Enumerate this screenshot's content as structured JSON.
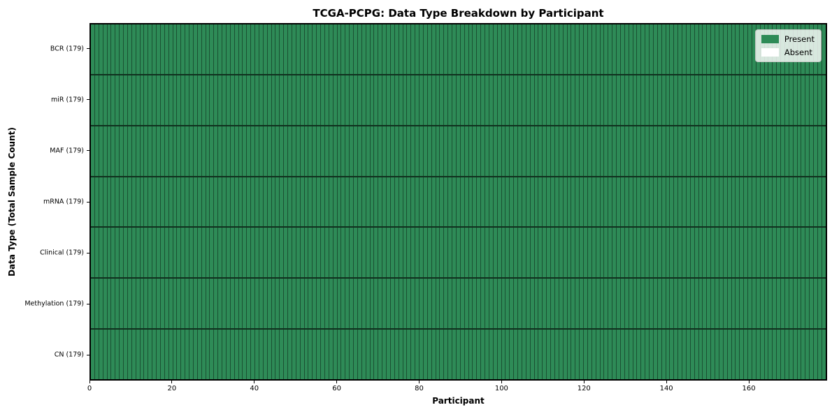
{
  "chart_data": {
    "type": "heatmap",
    "title": "TCGA-PCPG: Data Type Breakdown by Participant",
    "xlabel": "Participant",
    "ylabel": "Data Type (Total Sample Count)",
    "x_ticks": [
      0,
      20,
      40,
      60,
      80,
      100,
      120,
      140,
      160
    ],
    "xlim": [
      0,
      179
    ],
    "n_participants": 179,
    "rows": [
      {
        "label": "BCR (179)",
        "data_type": "BCR",
        "total_samples": 179,
        "present_count": 179
      },
      {
        "label": "miR (179)",
        "data_type": "miR",
        "total_samples": 179,
        "present_count": 179
      },
      {
        "label": "MAF (179)",
        "data_type": "MAF",
        "total_samples": 179,
        "present_count": 179
      },
      {
        "label": "mRNA (179)",
        "data_type": "mRNA",
        "total_samples": 179,
        "present_count": 179
      },
      {
        "label": "Clinical (179)",
        "data_type": "Clinical",
        "total_samples": 179,
        "present_count": 179
      },
      {
        "label": "Methylation (179)",
        "data_type": "Methylation",
        "total_samples": 179,
        "present_count": 179
      },
      {
        "label": "CN (179)",
        "data_type": "CN",
        "total_samples": 179,
        "present_count": 179
      }
    ],
    "legend": {
      "position": "upper right",
      "entries": [
        {
          "label": "Present",
          "color": "#2e8b57"
        },
        {
          "label": "Absent",
          "color": "#ffffff"
        }
      ]
    },
    "colors": {
      "present": "#2e8b57",
      "absent": "#ffffff",
      "cell_edge": "rgba(0,0,0,0.42)",
      "row_separator": "rgba(0,0,0,0.65)",
      "spine": "#000000"
    },
    "grid": false
  }
}
